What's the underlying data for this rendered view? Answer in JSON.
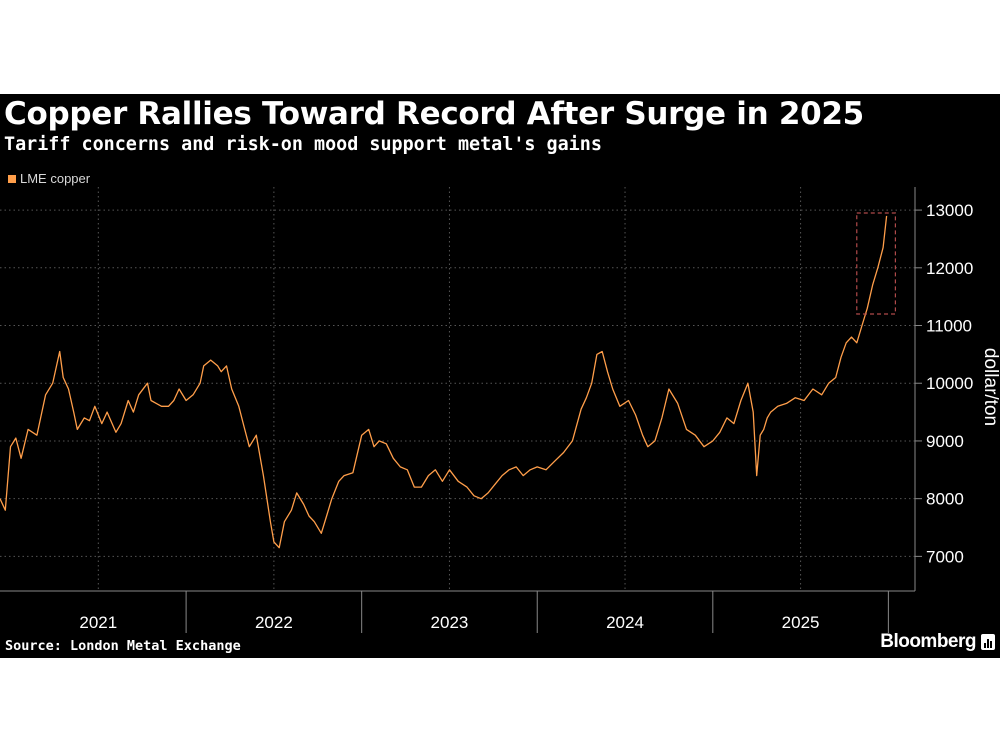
{
  "title": "Copper Rallies Toward Record After Surge in 2025",
  "subtitle": "Tariff concerns and risk-on mood support metal's gains",
  "legend": {
    "label": "LME copper",
    "color": "#ff9e4a"
  },
  "source": "Source: London Metal Exchange",
  "brand": "Bloomberg",
  "colors": {
    "background": "#000000",
    "line": "#ff9e4a",
    "grid": "#555555",
    "highlight": "#b04a4a",
    "text": "#ffffff"
  },
  "chart_data": {
    "type": "line",
    "title": "Copper Rallies Toward Record After Surge in 2025",
    "subtitle": "Tariff concerns and risk-on mood support metal's gains",
    "ylabel": "dollar/ton",
    "xlabel": "",
    "ylim": [
      6400,
      13400
    ],
    "xlim": [
      2020.94,
      2026.22
    ],
    "yticks": [
      7000,
      8000,
      9000,
      10000,
      11000,
      12000,
      13000
    ],
    "ytick_labels": [
      "7000",
      "8000",
      "9000",
      "10000",
      "11000",
      "12000",
      "13000"
    ],
    "year_labels": [
      {
        "label": "2021",
        "center": 2021.5
      },
      {
        "label": "2022",
        "center": 2022.5
      },
      {
        "label": "2023",
        "center": 2023.5
      },
      {
        "label": "2024",
        "center": 2024.5
      },
      {
        "label": "2025",
        "center": 2025.5
      }
    ],
    "year_boundaries": [
      2022,
      2023,
      2024,
      2025,
      2026
    ],
    "highlight_box": {
      "x0": 2025.82,
      "x1": 2026.04,
      "y0": 11200,
      "y1": 12950
    },
    "series": [
      {
        "name": "LME copper",
        "x": [
          2020.94,
          2020.97,
          2021.0,
          2021.03,
          2021.06,
          2021.1,
          2021.15,
          2021.2,
          2021.24,
          2021.28,
          2021.3,
          2021.33,
          2021.36,
          2021.38,
          2021.42,
          2021.45,
          2021.48,
          2021.52,
          2021.55,
          2021.6,
          2021.63,
          2021.67,
          2021.7,
          2021.73,
          2021.78,
          2021.8,
          2021.83,
          2021.86,
          2021.9,
          2021.93,
          2021.96,
          2022.0,
          2022.04,
          2022.08,
          2022.1,
          2022.14,
          2022.18,
          2022.2,
          2022.23,
          2022.26,
          2022.3,
          2022.33,
          2022.36,
          2022.4,
          2022.44,
          2022.48,
          2022.5,
          2022.53,
          2022.56,
          2022.6,
          2022.63,
          2022.67,
          2022.7,
          2022.73,
          2022.77,
          2022.8,
          2022.83,
          2022.87,
          2022.9,
          2022.95,
          2023.0,
          2023.04,
          2023.07,
          2023.1,
          2023.14,
          2023.18,
          2023.22,
          2023.26,
          2023.3,
          2023.34,
          2023.38,
          2023.42,
          2023.46,
          2023.5,
          2023.55,
          2023.6,
          2023.64,
          2023.68,
          2023.72,
          2023.76,
          2023.8,
          2023.84,
          2023.88,
          2023.92,
          2023.96,
          2024.0,
          2024.05,
          2024.1,
          2024.15,
          2024.2,
          2024.25,
          2024.28,
          2024.31,
          2024.34,
          2024.37,
          2024.4,
          2024.43,
          2024.47,
          2024.52,
          2024.56,
          2024.6,
          2024.63,
          2024.67,
          2024.71,
          2024.75,
          2024.8,
          2024.85,
          2024.9,
          2024.95,
          2025.0,
          2025.04,
          2025.08,
          2025.12,
          2025.16,
          2025.2,
          2025.23,
          2025.25,
          2025.27,
          2025.29,
          2025.31,
          2025.33,
          2025.37,
          2025.42,
          2025.47,
          2025.52,
          2025.57,
          2025.62,
          2025.66,
          2025.7,
          2025.73,
          2025.76,
          2025.79,
          2025.82,
          2025.85,
          2025.88,
          2025.91,
          2025.94,
          2025.97,
          2025.99
        ],
        "values": [
          8000,
          7800,
          8900,
          9050,
          8700,
          9200,
          9100,
          9800,
          10000,
          10550,
          10100,
          9900,
          9500,
          9200,
          9400,
          9350,
          9600,
          9300,
          9500,
          9150,
          9300,
          9700,
          9500,
          9800,
          10000,
          9700,
          9650,
          9600,
          9600,
          9700,
          9900,
          9700,
          9800,
          10000,
          10300,
          10400,
          10300,
          10200,
          10300,
          9900,
          9600,
          9250,
          8900,
          9100,
          8400,
          7600,
          7250,
          7150,
          7600,
          7800,
          8100,
          7900,
          7700,
          7600,
          7400,
          7700,
          8000,
          8300,
          8400,
          8450,
          9100,
          9200,
          8900,
          9000,
          8950,
          8700,
          8550,
          8500,
          8200,
          8200,
          8400,
          8500,
          8300,
          8500,
          8300,
          8200,
          8050,
          8000,
          8100,
          8250,
          8400,
          8500,
          8550,
          8400,
          8500,
          8550,
          8500,
          8650,
          8800,
          9000,
          9550,
          9750,
          10000,
          10500,
          10550,
          10200,
          9900,
          9600,
          9700,
          9450,
          9100,
          8900,
          9000,
          9400,
          9900,
          9650,
          9200,
          9100,
          8900,
          9000,
          9150,
          9400,
          9300,
          9700,
          10000,
          9500,
          8400,
          9100,
          9200,
          9400,
          9500,
          9600,
          9650,
          9750,
          9700,
          9900,
          9800,
          10000,
          10100,
          10450,
          10700,
          10800,
          10700,
          11000,
          11300,
          11700,
          12000,
          12350,
          12900
        ]
      }
    ]
  }
}
